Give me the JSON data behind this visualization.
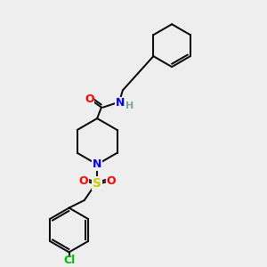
{
  "bg_color": "#eeeeee",
  "bond_color": "#000000",
  "atom_colors": {
    "O": "#ff0000",
    "N_amide": "#0000ff",
    "N_pip": "#0000ff",
    "H": "#7fa0a0",
    "S": "#cccc00",
    "Cl": "#00bb00"
  },
  "figsize": [
    3.0,
    3.0
  ],
  "dpi": 100
}
